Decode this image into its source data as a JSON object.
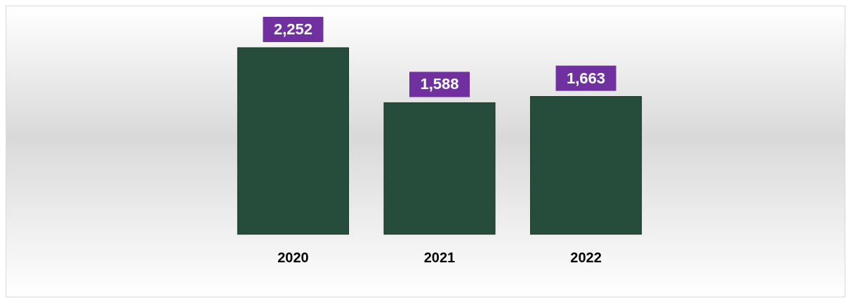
{
  "chart_data": {
    "type": "bar",
    "categories": [
      "2020",
      "2021",
      "2022"
    ],
    "values": [
      2252,
      1588,
      1663
    ],
    "value_labels": [
      "2,252",
      "1,588",
      "1,663"
    ],
    "color": "#264d3b"
  }
}
